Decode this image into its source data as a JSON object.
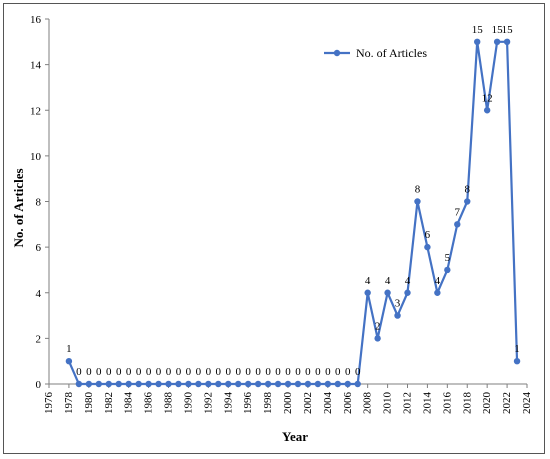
{
  "chart_data": {
    "type": "line",
    "title": "",
    "xlabel": "Year",
    "ylabel": "No. of Articles",
    "xlim": [
      1976,
      2024
    ],
    "ylim": [
      0,
      16
    ],
    "x_ticks": [
      1976,
      1978,
      1980,
      1982,
      1984,
      1986,
      1988,
      1990,
      1992,
      1994,
      1996,
      1998,
      2000,
      2002,
      2004,
      2006,
      2008,
      2010,
      2012,
      2014,
      2016,
      2018,
      2020,
      2022,
      2024
    ],
    "y_ticks": [
      0,
      2,
      4,
      6,
      8,
      10,
      12,
      14,
      16
    ],
    "grid": false,
    "legend_position": "top-right",
    "series": [
      {
        "name": "No. of Articles",
        "color": "#4472c4",
        "x": [
          1978,
          1979,
          1980,
          1981,
          1982,
          1983,
          1984,
          1985,
          1986,
          1987,
          1988,
          1989,
          1990,
          1991,
          1992,
          1993,
          1994,
          1995,
          1996,
          1997,
          1998,
          1999,
          2000,
          2001,
          2002,
          2003,
          2004,
          2005,
          2006,
          2007,
          2008,
          2009,
          2010,
          2011,
          2012,
          2013,
          2014,
          2015,
          2016,
          2017,
          2018,
          2019,
          2020,
          2021,
          2022,
          2023
        ],
        "values": [
          1,
          0,
          0,
          0,
          0,
          0,
          0,
          0,
          0,
          0,
          0,
          0,
          0,
          0,
          0,
          0,
          0,
          0,
          0,
          0,
          0,
          0,
          0,
          0,
          0,
          0,
          0,
          0,
          0,
          0,
          4,
          2,
          4,
          3,
          4,
          8,
          6,
          4,
          5,
          7,
          8,
          15,
          12,
          15,
          15,
          1
        ]
      }
    ]
  }
}
